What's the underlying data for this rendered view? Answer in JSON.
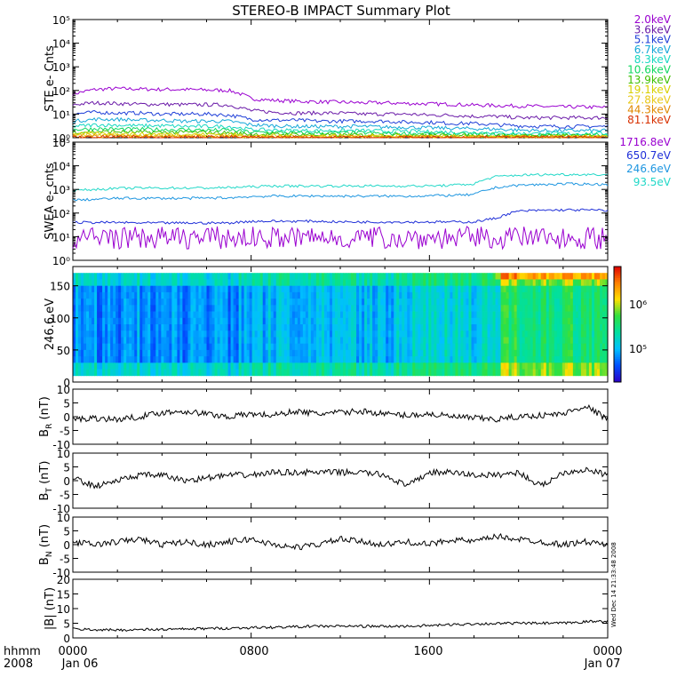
{
  "title": "STEREO-B IMPACT Summary Plot",
  "colors": {
    "ste_energies": [
      "#9a00d0",
      "#6a1aa8",
      "#1f3fd8",
      "#16a8d8",
      "#18d8c0",
      "#10d860",
      "#40c000",
      "#d8d000",
      "#e8c818",
      "#e08800",
      "#d83000"
    ],
    "swea_energies": [
      "#9a00d0",
      "#1f2fd8",
      "#1e96e0",
      "#22d8c8"
    ]
  },
  "bottom_axis": {
    "label_row1": "hhmm",
    "label_row2": "2008",
    "ticks": [
      "0000",
      "0800",
      "1600",
      "0000"
    ],
    "dates": [
      "Jan 06",
      "Jan 07"
    ]
  },
  "timestamp": "Wed Dec 14 21:33:48 2008",
  "chart_data": [
    {
      "type": "line",
      "name": "ste",
      "ylabel": "STE e- Cnts",
      "yscale": "log",
      "ylim": [
        1,
        100000
      ],
      "yticks": [
        "10⁰",
        "10¹",
        "10²",
        "10³",
        "10⁴",
        "10⁵"
      ],
      "xlim_hours": [
        0,
        24
      ],
      "series": [
        {
          "name": "2.0keV",
          "values": [
            70,
            110,
            120,
            115,
            110,
            110,
            105,
            100,
            45,
            38,
            35,
            33,
            32,
            30,
            30,
            28,
            27,
            26,
            24,
            23,
            22,
            21,
            20,
            20,
            19
          ]
        },
        {
          "name": "3.6keV",
          "values": [
            25,
            30,
            28,
            26,
            26,
            25,
            25,
            24,
            14,
            12,
            11,
            11,
            11,
            10,
            10,
            10,
            9,
            9,
            8,
            8,
            7,
            7,
            7,
            7,
            7
          ]
        },
        {
          "name": "5.1keV",
          "values": [
            10,
            12,
            11,
            11,
            10,
            10,
            10,
            9,
            6,
            5.5,
            5.5,
            5,
            5,
            5,
            5,
            4.5,
            4.5,
            4,
            4,
            3.5,
            3.2,
            3,
            3,
            3,
            3
          ]
        },
        {
          "name": "6.7keV",
          "values": [
            5,
            6,
            6,
            5.5,
            5.5,
            5,
            5,
            5,
            3.5,
            3.2,
            3,
            3,
            3,
            3,
            2.8,
            2.8,
            2.6,
            2.5,
            2.4,
            2.3,
            2.1,
            2,
            2,
            2,
            2
          ]
        },
        {
          "name": "8.3keV",
          "values": [
            3,
            3.5,
            3.4,
            3.2,
            3.2,
            3,
            3,
            3,
            2.2,
            2.1,
            2,
            2,
            2,
            2,
            1.9,
            1.9,
            1.8,
            1.7,
            1.7,
            1.6,
            1.5,
            1.5,
            1.5,
            1.5,
            1.5
          ]
        },
        {
          "name": "10.6keV",
          "values": [
            2.2,
            2.4,
            2.3,
            2.3,
            2.2,
            2.2,
            2.1,
            2.1,
            1.7,
            1.7,
            1.6,
            1.6,
            1.6,
            1.6,
            1.5,
            1.5,
            1.5,
            1.4,
            1.4,
            1.4,
            1.3,
            1.3,
            1.3,
            1.3,
            1.3
          ]
        },
        {
          "name": "13.9keV",
          "values": [
            1.7,
            1.8,
            1.8,
            1.7,
            1.7,
            1.7,
            1.7,
            1.6,
            1.4,
            1.4,
            1.4,
            1.3,
            1.3,
            1.3,
            1.3,
            1.3,
            1.3,
            1.2,
            1.2,
            1.2,
            1.2,
            1.2,
            1.2,
            1.2,
            1.2
          ]
        },
        {
          "name": "19.1keV",
          "values": [
            1.4,
            1.5,
            1.5,
            1.4,
            1.4,
            1.4,
            1.4,
            1.4,
            1.2,
            1.2,
            1.2,
            1.2,
            1.2,
            1.2,
            1.2,
            1.2,
            1.1,
            1.1,
            1.1,
            1.1,
            1.1,
            1.1,
            1.1,
            1.1,
            1.1
          ]
        },
        {
          "name": "27.8keV",
          "values": [
            1.25,
            1.3,
            1.3,
            1.25,
            1.25,
            1.25,
            1.2,
            1.2,
            1.1,
            1.1,
            1.1,
            1.1,
            1.1,
            1.1,
            1.1,
            1.05,
            1.05,
            1.05,
            1.05,
            1.05,
            1.05,
            1.05,
            1.05,
            1.05,
            1.05
          ]
        },
        {
          "name": "44.3keV",
          "values": [
            1.12,
            1.15,
            1.15,
            1.12,
            1.12,
            1.1,
            1.1,
            1.1,
            1.05,
            1.05,
            1.05,
            1.05,
            1.05,
            1.05,
            1.03,
            1.03,
            1.03,
            1.03,
            1.03,
            1.03,
            1.02,
            1.02,
            1.02,
            1.02,
            1.02
          ]
        },
        {
          "name": "81.1keV",
          "values": [
            1.05,
            1.06,
            1.06,
            1.05,
            1.05,
            1.05,
            1.05,
            1.05,
            1.02,
            1.02,
            1.02,
            1.02,
            1.02,
            1.02,
            1.01,
            1.01,
            1.01,
            1.01,
            1.01,
            1.01,
            1.01,
            1.01,
            1.01,
            1.01,
            1.01
          ]
        }
      ]
    },
    {
      "type": "line",
      "name": "swea",
      "ylabel": "SWEA e- cnts",
      "yscale": "log",
      "ylim": [
        1,
        100000
      ],
      "yticks": [
        "10⁰",
        "10¹",
        "10²",
        "10³",
        "10⁴",
        "10⁵"
      ],
      "xlim_hours": [
        0,
        24
      ],
      "series": [
        {
          "name": "1716.8eV",
          "values": [
            10,
            10,
            10,
            10,
            10,
            10,
            10,
            10,
            10,
            10,
            10,
            10,
            10,
            10,
            10,
            10,
            10,
            10,
            10,
            10,
            10,
            10,
            10,
            10,
            10
          ]
        },
        {
          "name": "650.7eV",
          "values": [
            40,
            40,
            40,
            38,
            38,
            38,
            38,
            38,
            45,
            45,
            45,
            45,
            42,
            42,
            42,
            42,
            42,
            42,
            42,
            60,
            120,
            130,
            135,
            135,
            130
          ]
        },
        {
          "name": "246.6eV",
          "values": [
            350,
            380,
            420,
            420,
            420,
            420,
            430,
            440,
            500,
            520,
            520,
            530,
            520,
            520,
            520,
            520,
            540,
            560,
            600,
            1200,
            1500,
            1600,
            1700,
            1700,
            1600
          ]
        },
        {
          "name": "93.5eV",
          "values": [
            900,
            1000,
            1100,
            1150,
            1150,
            1150,
            1150,
            1200,
            1300,
            1400,
            1400,
            1400,
            1400,
            1400,
            1400,
            1400,
            1400,
            1500,
            1700,
            3500,
            4000,
            4200,
            4300,
            4300,
            4200
          ]
        }
      ]
    },
    {
      "type": "heatmap",
      "name": "pad",
      "ylabel": "246.6 eV",
      "ylim": [
        0,
        180
      ],
      "yticks": [
        0,
        50,
        100,
        150
      ],
      "xlim_hours": [
        0,
        24
      ],
      "colorbar_ticks": [
        "10⁵",
        "10⁶"
      ],
      "colorscale": [
        "#2a00c8",
        "#0050ff",
        "#00c0ff",
        "#00e0a0",
        "#30e040",
        "#ffe000",
        "#ff8000",
        "#e00000"
      ]
    },
    {
      "type": "line",
      "name": "br",
      "ylabel": "B_R (nT)",
      "ylim": [
        -10,
        10
      ],
      "yticks": [
        -10,
        -5,
        0,
        5,
        10
      ],
      "xlim_hours": [
        0,
        24
      ],
      "series": [
        {
          "values": [
            -1,
            -0.5,
            -1,
            0,
            1.5,
            2,
            1,
            0,
            1,
            0.5,
            2,
            1,
            1.5,
            2,
            1,
            0.5,
            1,
            0,
            -0.5,
            -1,
            0,
            0.5,
            1,
            4,
            -1
          ]
        }
      ]
    },
    {
      "type": "line",
      "name": "bt",
      "ylabel": "B_T (nT)",
      "ylim": [
        -10,
        10
      ],
      "yticks": [
        -10,
        -5,
        0,
        5,
        10
      ],
      "xlim_hours": [
        0,
        24
      ],
      "series": [
        {
          "values": [
            1,
            -2,
            0,
            2,
            2,
            0,
            1,
            2,
            2,
            3,
            3,
            3,
            3,
            3,
            2,
            -2,
            3,
            3,
            2,
            2,
            3,
            -2,
            3,
            4,
            2
          ]
        }
      ]
    },
    {
      "type": "line",
      "name": "bn",
      "ylabel": "B_N (nT)",
      "ylim": [
        -10,
        10
      ],
      "yticks": [
        -10,
        -5,
        0,
        5,
        10
      ],
      "xlim_hours": [
        0,
        24
      ],
      "series": [
        {
          "values": [
            1,
            0,
            1,
            2,
            0,
            1,
            0,
            1,
            2,
            0,
            -1,
            0,
            2,
            1,
            0,
            1,
            0,
            2,
            1,
            3,
            2,
            1,
            0,
            1,
            0
          ]
        }
      ]
    },
    {
      "type": "line",
      "name": "bmag",
      "ylabel": "|B| (nT)",
      "ylim": [
        0,
        20
      ],
      "yticks": [
        0,
        5,
        10,
        15,
        20
      ],
      "xlim_hours": [
        0,
        24
      ],
      "series": [
        {
          "values": [
            3,
            2.8,
            2.7,
            2.8,
            2.9,
            3,
            3.2,
            3.3,
            3.5,
            3.6,
            3.8,
            4,
            4,
            4,
            3.9,
            4,
            4.2,
            4.5,
            4.8,
            4.9,
            5,
            5,
            5,
            5.5,
            5.8
          ]
        }
      ]
    }
  ]
}
